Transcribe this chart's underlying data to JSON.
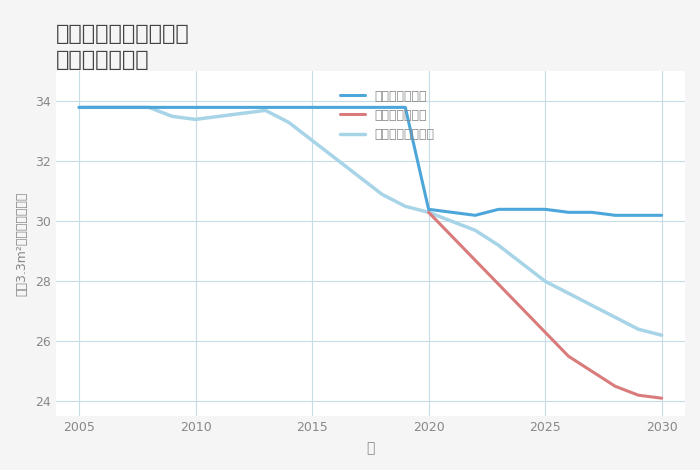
{
  "title": "愛知県豊川市美和通の\n土地の価格推移",
  "xlabel": "年",
  "ylabel": "平（3.3m²）単価（万円）",
  "xlim": [
    2004,
    2031
  ],
  "ylim": [
    23.5,
    35
  ],
  "yticks": [
    24,
    26,
    28,
    30,
    32,
    34
  ],
  "xticks": [
    2005,
    2010,
    2015,
    2020,
    2025,
    2030
  ],
  "good_x": [
    2005,
    2006,
    2007,
    2008,
    2009,
    2010,
    2011,
    2012,
    2013,
    2014,
    2015,
    2016,
    2017,
    2018,
    2019,
    2020,
    2021,
    2022,
    2023,
    2024,
    2025,
    2026,
    2027,
    2028,
    2029,
    2030
  ],
  "good_y": [
    33.8,
    33.8,
    33.8,
    33.8,
    33.8,
    33.8,
    33.8,
    33.8,
    33.8,
    33.8,
    33.8,
    33.8,
    33.8,
    33.8,
    33.8,
    30.4,
    30.3,
    30.2,
    30.4,
    30.4,
    30.4,
    30.3,
    30.3,
    30.2,
    30.2,
    30.2
  ],
  "bad_x": [
    2020,
    2021,
    2022,
    2023,
    2024,
    2025,
    2026,
    2027,
    2028,
    2029,
    2030
  ],
  "bad_y": [
    30.3,
    29.5,
    28.7,
    27.9,
    27.1,
    26.3,
    25.5,
    25.0,
    24.5,
    24.2,
    24.1
  ],
  "normal_x": [
    2005,
    2006,
    2007,
    2008,
    2009,
    2010,
    2011,
    2012,
    2013,
    2014,
    2015,
    2016,
    2017,
    2018,
    2019,
    2020,
    2021,
    2022,
    2023,
    2024,
    2025,
    2026,
    2027,
    2028,
    2029,
    2030
  ],
  "normal_y": [
    33.8,
    33.8,
    33.8,
    33.8,
    33.5,
    33.4,
    33.5,
    33.6,
    33.7,
    33.3,
    32.7,
    32.1,
    31.5,
    30.9,
    30.5,
    30.3,
    30.0,
    29.7,
    29.2,
    28.6,
    28.0,
    27.6,
    27.2,
    26.8,
    26.4,
    26.2
  ],
  "good_color": "#4da6d9",
  "bad_color": "#d97b7b",
  "normal_color": "#a8d4e8",
  "good_label": "グッドシナリオ",
  "bad_label": "バッドシナリオ",
  "normal_label": "ノーマルシナリオ",
  "background_color": "#f5f5f5",
  "plot_background": "#ffffff",
  "grid_color": "#c8dce8",
  "title_color": "#444444",
  "axis_color": "#888888",
  "tick_color": "#888888"
}
